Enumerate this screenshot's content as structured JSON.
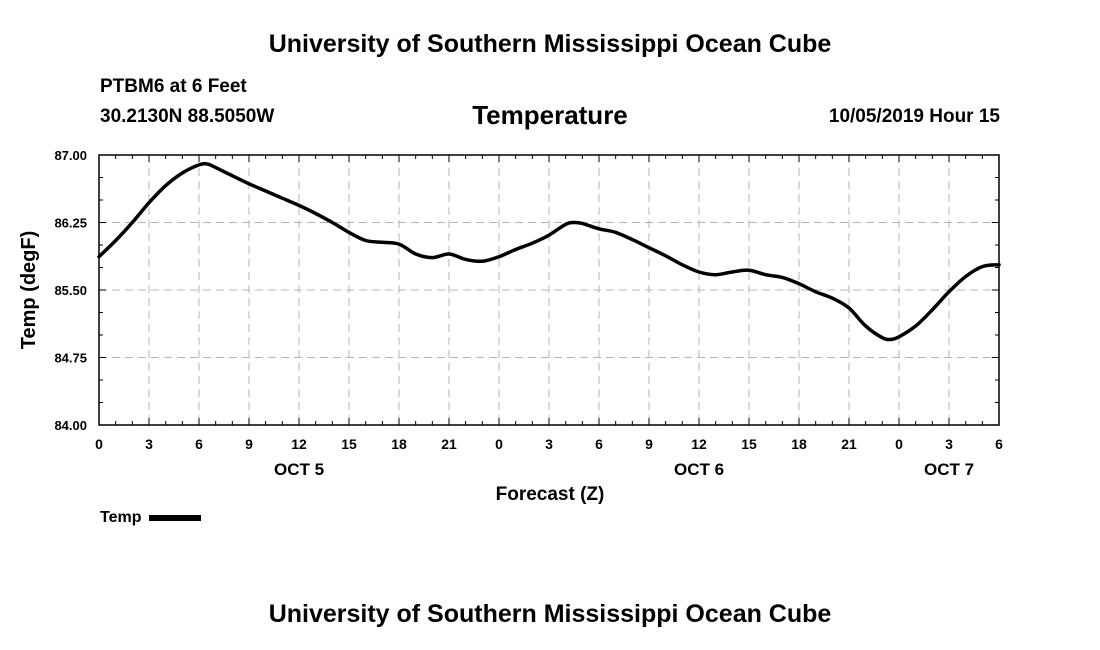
{
  "header": {
    "org_title": "University of Southern Mississippi Ocean Cube",
    "station": "PTBM6 at 6 Feet",
    "coordinates": "30.2130N 88.5050W",
    "timestamp": "10/05/2019 Hour 15"
  },
  "footer": {
    "org_title": "University of Southern Mississippi Ocean Cube"
  },
  "legend": {
    "label": "Temp"
  },
  "chart_data": {
    "type": "line",
    "title": "Temperature",
    "xlabel": "Forecast (Z)",
    "ylabel": "Temp (degF)",
    "xlim": [
      0,
      54
    ],
    "ylim": [
      84.0,
      87.0
    ],
    "yticks": [
      "84.00",
      "84.75",
      "85.50",
      "86.25",
      "87.00"
    ],
    "ytick_values": [
      84.0,
      84.75,
      85.5,
      86.25,
      87.0
    ],
    "xtick_values": [
      0,
      3,
      6,
      9,
      12,
      15,
      18,
      21,
      24,
      27,
      30,
      33,
      36,
      39,
      42,
      45,
      48,
      51,
      54
    ],
    "xtick_labels": [
      "0",
      "3",
      "6",
      "9",
      "12",
      "15",
      "18",
      "21",
      "0",
      "3",
      "6",
      "9",
      "12",
      "15",
      "18",
      "21",
      "0",
      "3",
      "6"
    ],
    "date_labels": [
      {
        "hour": 12,
        "text": "OCT 5"
      },
      {
        "hour": 36,
        "text": "OCT 6"
      },
      {
        "hour": 51,
        "text": "OCT 7"
      }
    ],
    "grid": true,
    "legend_position": "bottom-left",
    "series": [
      {
        "name": "Temp",
        "color": "#000000",
        "x": [
          0,
          1,
          2,
          3,
          4,
          5,
          6,
          6.5,
          7,
          8,
          9,
          10,
          11,
          12,
          13,
          14,
          15,
          16,
          17,
          18,
          19,
          20,
          21,
          22,
          23,
          24,
          25,
          26,
          27,
          28,
          28.5,
          29,
          30,
          31,
          32,
          33,
          34,
          35,
          36,
          37,
          38,
          39,
          40,
          41,
          42,
          43,
          44,
          45,
          46,
          47,
          47.5,
          48,
          49,
          50,
          51,
          52,
          53,
          54
        ],
        "values": [
          85.87,
          86.05,
          86.25,
          86.47,
          86.66,
          86.8,
          86.89,
          86.9,
          86.86,
          86.77,
          86.68,
          86.6,
          86.52,
          86.44,
          86.35,
          86.25,
          86.14,
          86.05,
          86.03,
          86.01,
          85.9,
          85.86,
          85.9,
          85.84,
          85.82,
          85.87,
          85.95,
          86.02,
          86.11,
          86.23,
          86.25,
          86.24,
          86.18,
          86.14,
          86.06,
          85.97,
          85.88,
          85.78,
          85.7,
          85.67,
          85.7,
          85.72,
          85.67,
          85.64,
          85.57,
          85.48,
          85.41,
          85.3,
          85.1,
          84.97,
          84.95,
          84.98,
          85.1,
          85.28,
          85.48,
          85.65,
          85.76,
          85.78
        ]
      }
    ]
  }
}
